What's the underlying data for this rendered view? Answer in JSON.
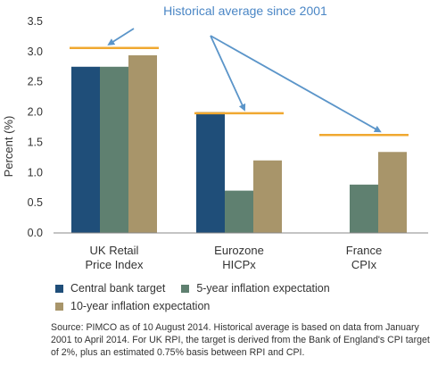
{
  "annotation": "Historical average since 2001",
  "colors": {
    "central_bank_target": "#1f4e79",
    "five_year": "#5f8070",
    "ten_year": "#a8956a",
    "historical_line": "#f0a830",
    "arrow": "#5b95c9",
    "annotation_text": "#4a86c5",
    "axis": "#888888"
  },
  "legend": {
    "items": [
      {
        "label": "Central bank target",
        "color": "#1f4e79"
      },
      {
        "label": "5-year inflation expectation",
        "color": "#5f8070"
      },
      {
        "label": "10-year inflation expectation",
        "color": "#a8956a"
      }
    ]
  },
  "source_note": "Source: PIMCO as of 10 August 2014. Historical average is based on data from January 2001 to April 2014. For UK RPI, the target is derived from the Bank of England's CPI target of 2%, plus an estimated 0.75% basis between RPI and CPI.",
  "chart_data": {
    "type": "bar",
    "categories": [
      [
        "UK Retail",
        "Price Index"
      ],
      [
        "Eurozone",
        "HICPx"
      ],
      [
        "France",
        "CPIx"
      ]
    ],
    "series": [
      {
        "name": "Central bank target",
        "values": [
          2.75,
          2.0,
          null
        ]
      },
      {
        "name": "5-year inflation expectation",
        "values": [
          2.75,
          0.7,
          0.8
        ]
      },
      {
        "name": "10-year inflation expectation",
        "values": [
          2.94,
          1.2,
          1.34
        ]
      }
    ],
    "historical_average": [
      3.06,
      1.98,
      1.62
    ],
    "ylabel": "Percent (%)",
    "xlabel": "",
    "ylim": [
      0,
      3.5
    ],
    "yticks": [
      "0.0",
      "0.5",
      "1.0",
      "1.5",
      "2.0",
      "2.5",
      "3.0",
      "3.5"
    ],
    "grid": false,
    "legend_position": "bottom"
  }
}
